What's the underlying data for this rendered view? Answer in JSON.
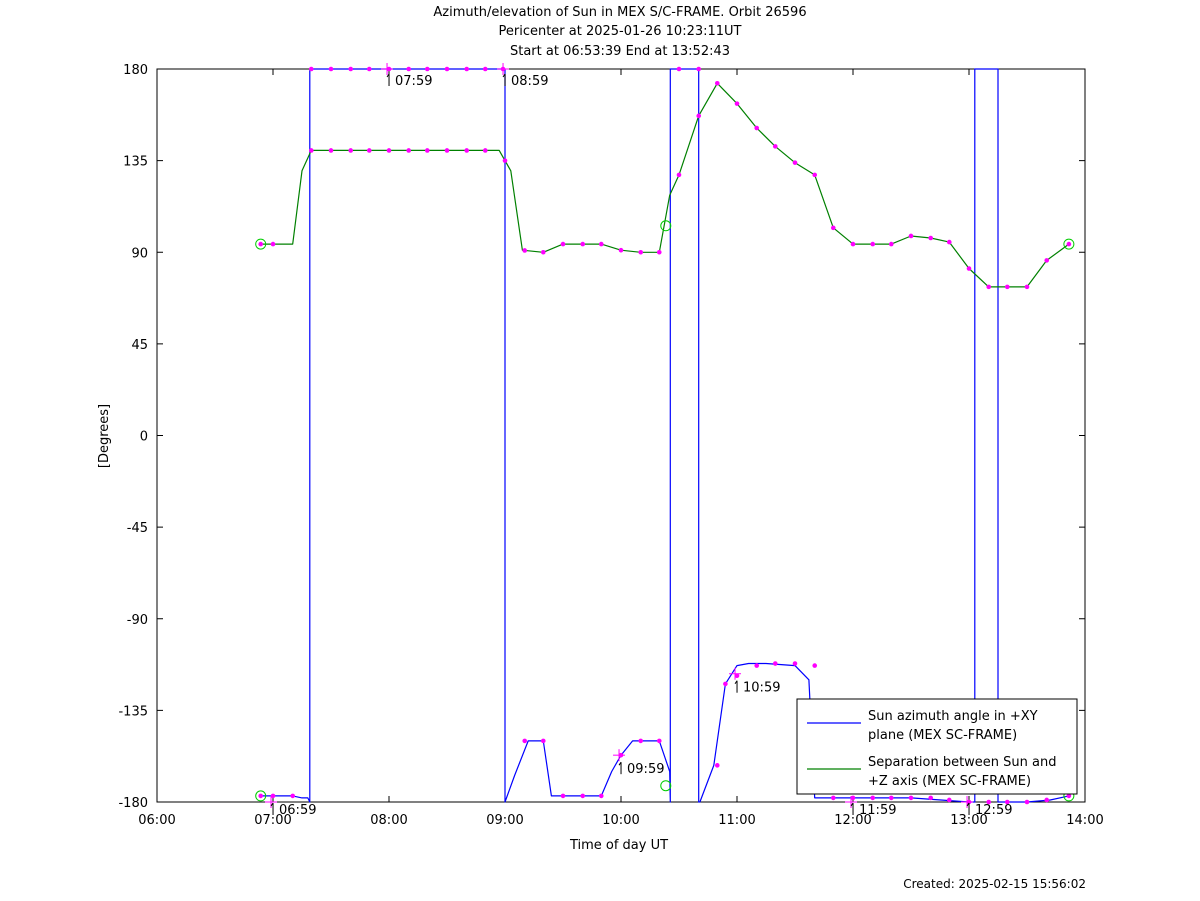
{
  "header": {
    "title": "Azimuth/elevation of Sun in MEX S/C-FRAME.  Orbit 26596",
    "pericenter": "Pericenter at 2025-01-26 10:23:11UT",
    "start_end": "Start at 06:53:39 End at 13:52:43"
  },
  "footer": {
    "created": "Created: 2025-02-15 15:56:02"
  },
  "chart_data": {
    "type": "line",
    "title": "Azimuth/elevation of Sun in MEX S/C-FRAME.  Orbit 26596",
    "xlabel": "Time of day UT",
    "ylabel": "[Degrees]",
    "xlim": [
      6.0,
      14.0
    ],
    "ylim": [
      -180,
      180
    ],
    "x_ticks": [
      "06:00",
      "07:00",
      "08:00",
      "09:00",
      "10:00",
      "11:00",
      "12:00",
      "13:00",
      "14:00"
    ],
    "y_ticks": [
      180,
      135,
      90,
      45,
      0,
      -45,
      -90,
      -135,
      -180
    ],
    "grid": false,
    "legend_position": "bottom-right",
    "series": [
      {
        "name": "Sun azimuth angle in +XY plane (MEX SC-FRAME)",
        "legend_lines": [
          "Sun azimuth angle in +XY",
          "plane (MEX SC-FRAME)"
        ],
        "color": "#0000ff",
        "x": [
          6.894,
          7.0,
          7.17,
          7.25,
          7.3,
          7.317,
          7.317,
          7.5,
          8.0,
          8.5,
          8.983,
          9.0,
          9.0,
          9.083,
          9.2,
          9.33,
          9.4,
          9.5,
          9.83,
          9.92,
          10.0,
          10.1,
          10.2,
          10.33,
          10.42,
          10.425,
          10.425,
          10.65,
          10.667,
          10.67,
          10.67,
          10.68,
          10.8,
          10.9,
          11.0,
          11.1,
          11.25,
          11.5,
          11.62,
          11.67,
          11.75,
          12.0,
          12.5,
          13.0,
          13.05,
          13.05,
          13.2,
          13.25,
          13.25,
          13.5,
          13.7,
          13.861
        ],
        "y": [
          -177,
          -177,
          -177,
          -178,
          -178,
          -180,
          180,
          180,
          180,
          180,
          180,
          180,
          -180,
          -167,
          -150,
          -150,
          -177,
          -177,
          -177,
          -165,
          -157,
          -150,
          -150,
          -150,
          -165,
          -180,
          180,
          180,
          180,
          180,
          -180,
          -180,
          -162,
          -122,
          -113,
          -112,
          -112,
          -113,
          -120,
          -178,
          -178,
          -178,
          -178,
          -180,
          -180,
          180,
          180,
          180,
          -180,
          -180,
          -179,
          -177
        ]
      },
      {
        "name": "Separation between Sun and +Z axis (MEX SC-FRAME)",
        "legend_lines": [
          "Separation between Sun and",
          "+Z axis (MEX SC-FRAME)"
        ],
        "color": "#008000",
        "x": [
          6.894,
          6.95,
          7.17,
          7.25,
          7.33,
          7.5,
          8.0,
          8.5,
          8.95,
          9.05,
          9.15,
          9.33,
          9.5,
          9.83,
          10.0,
          10.17,
          10.33,
          10.42,
          10.5,
          10.67,
          10.83,
          11.0,
          11.17,
          11.33,
          11.5,
          11.67,
          11.83,
          12.0,
          12.17,
          12.33,
          12.5,
          12.67,
          12.83,
          13.0,
          13.17,
          13.33,
          13.5,
          13.67,
          13.861
        ],
        "y": [
          94,
          94,
          94,
          130,
          140,
          140,
          140,
          140,
          140,
          130,
          91,
          90,
          94,
          94,
          91,
          90,
          90,
          118,
          128,
          157,
          173,
          163,
          151,
          142,
          134,
          128,
          102,
          94,
          94,
          94,
          98,
          97,
          95,
          82,
          73,
          73,
          73,
          86,
          94
        ]
      }
    ],
    "marker_points": {
      "color": "#ff00ff",
      "azimuth_x": [
        6.894,
        7.0,
        7.17,
        7.33,
        7.5,
        7.67,
        7.83,
        8.0,
        8.17,
        8.33,
        8.5,
        8.67,
        8.83,
        8.983,
        9.17,
        9.33,
        9.5,
        9.67,
        9.83,
        10.0,
        10.17,
        10.33,
        10.5,
        10.67,
        10.83,
        10.9,
        11.0,
        11.17,
        11.33,
        11.5,
        11.67,
        11.83,
        12.0,
        12.17,
        12.33,
        12.5,
        12.67,
        12.83,
        13.0,
        13.17,
        13.33,
        13.5,
        13.67,
        13.861
      ],
      "azimuth_y": [
        -177,
        -177,
        -177,
        180,
        180,
        180,
        180,
        180,
        180,
        180,
        180,
        180,
        180,
        180,
        -150,
        -150,
        -177,
        -177,
        -177,
        -157,
        -150,
        -150,
        180,
        180,
        -162,
        -122,
        -118,
        -113,
        -112,
        -112,
        -113,
        -178,
        -178,
        -178,
        -178,
        -178,
        -178,
        -179,
        -180,
        -180,
        -180,
        -180,
        -179,
        -177
      ],
      "separation_x": [
        6.894,
        7.0,
        7.33,
        7.5,
        7.67,
        7.83,
        8.0,
        8.17,
        8.33,
        8.5,
        8.67,
        8.83,
        9.0,
        9.17,
        9.33,
        9.5,
        9.67,
        9.83,
        10.0,
        10.17,
        10.33,
        10.5,
        10.67,
        10.83,
        11.0,
        11.17,
        11.33,
        11.5,
        11.67,
        11.83,
        12.0,
        12.17,
        12.33,
        12.5,
        12.67,
        12.83,
        13.0,
        13.17,
        13.33,
        13.5,
        13.67,
        13.861
      ]
    },
    "start_circles": {
      "x": 6.894,
      "azimuth": -177,
      "separation": 94
    },
    "end_circles": {
      "x": 13.861,
      "azimuth": -177,
      "separation": 94
    },
    "pericenter_circles": {
      "x": 10.386,
      "azimuth": -172,
      "separation": 103
    },
    "hour_annotations": [
      {
        "label": "06:59",
        "x": 6.983,
        "y": -180
      },
      {
        "label": "07:59",
        "x": 7.983,
        "y": 180
      },
      {
        "label": "08:59",
        "x": 8.983,
        "y": 180
      },
      {
        "label": "09:59",
        "x": 9.983,
        "y": -157
      },
      {
        "label": "10:59",
        "x": 10.983,
        "y": -117
      },
      {
        "label": "11:59",
        "x": 11.983,
        "y": -180
      },
      {
        "label": "12:59",
        "x": 12.983,
        "y": -180
      }
    ]
  }
}
